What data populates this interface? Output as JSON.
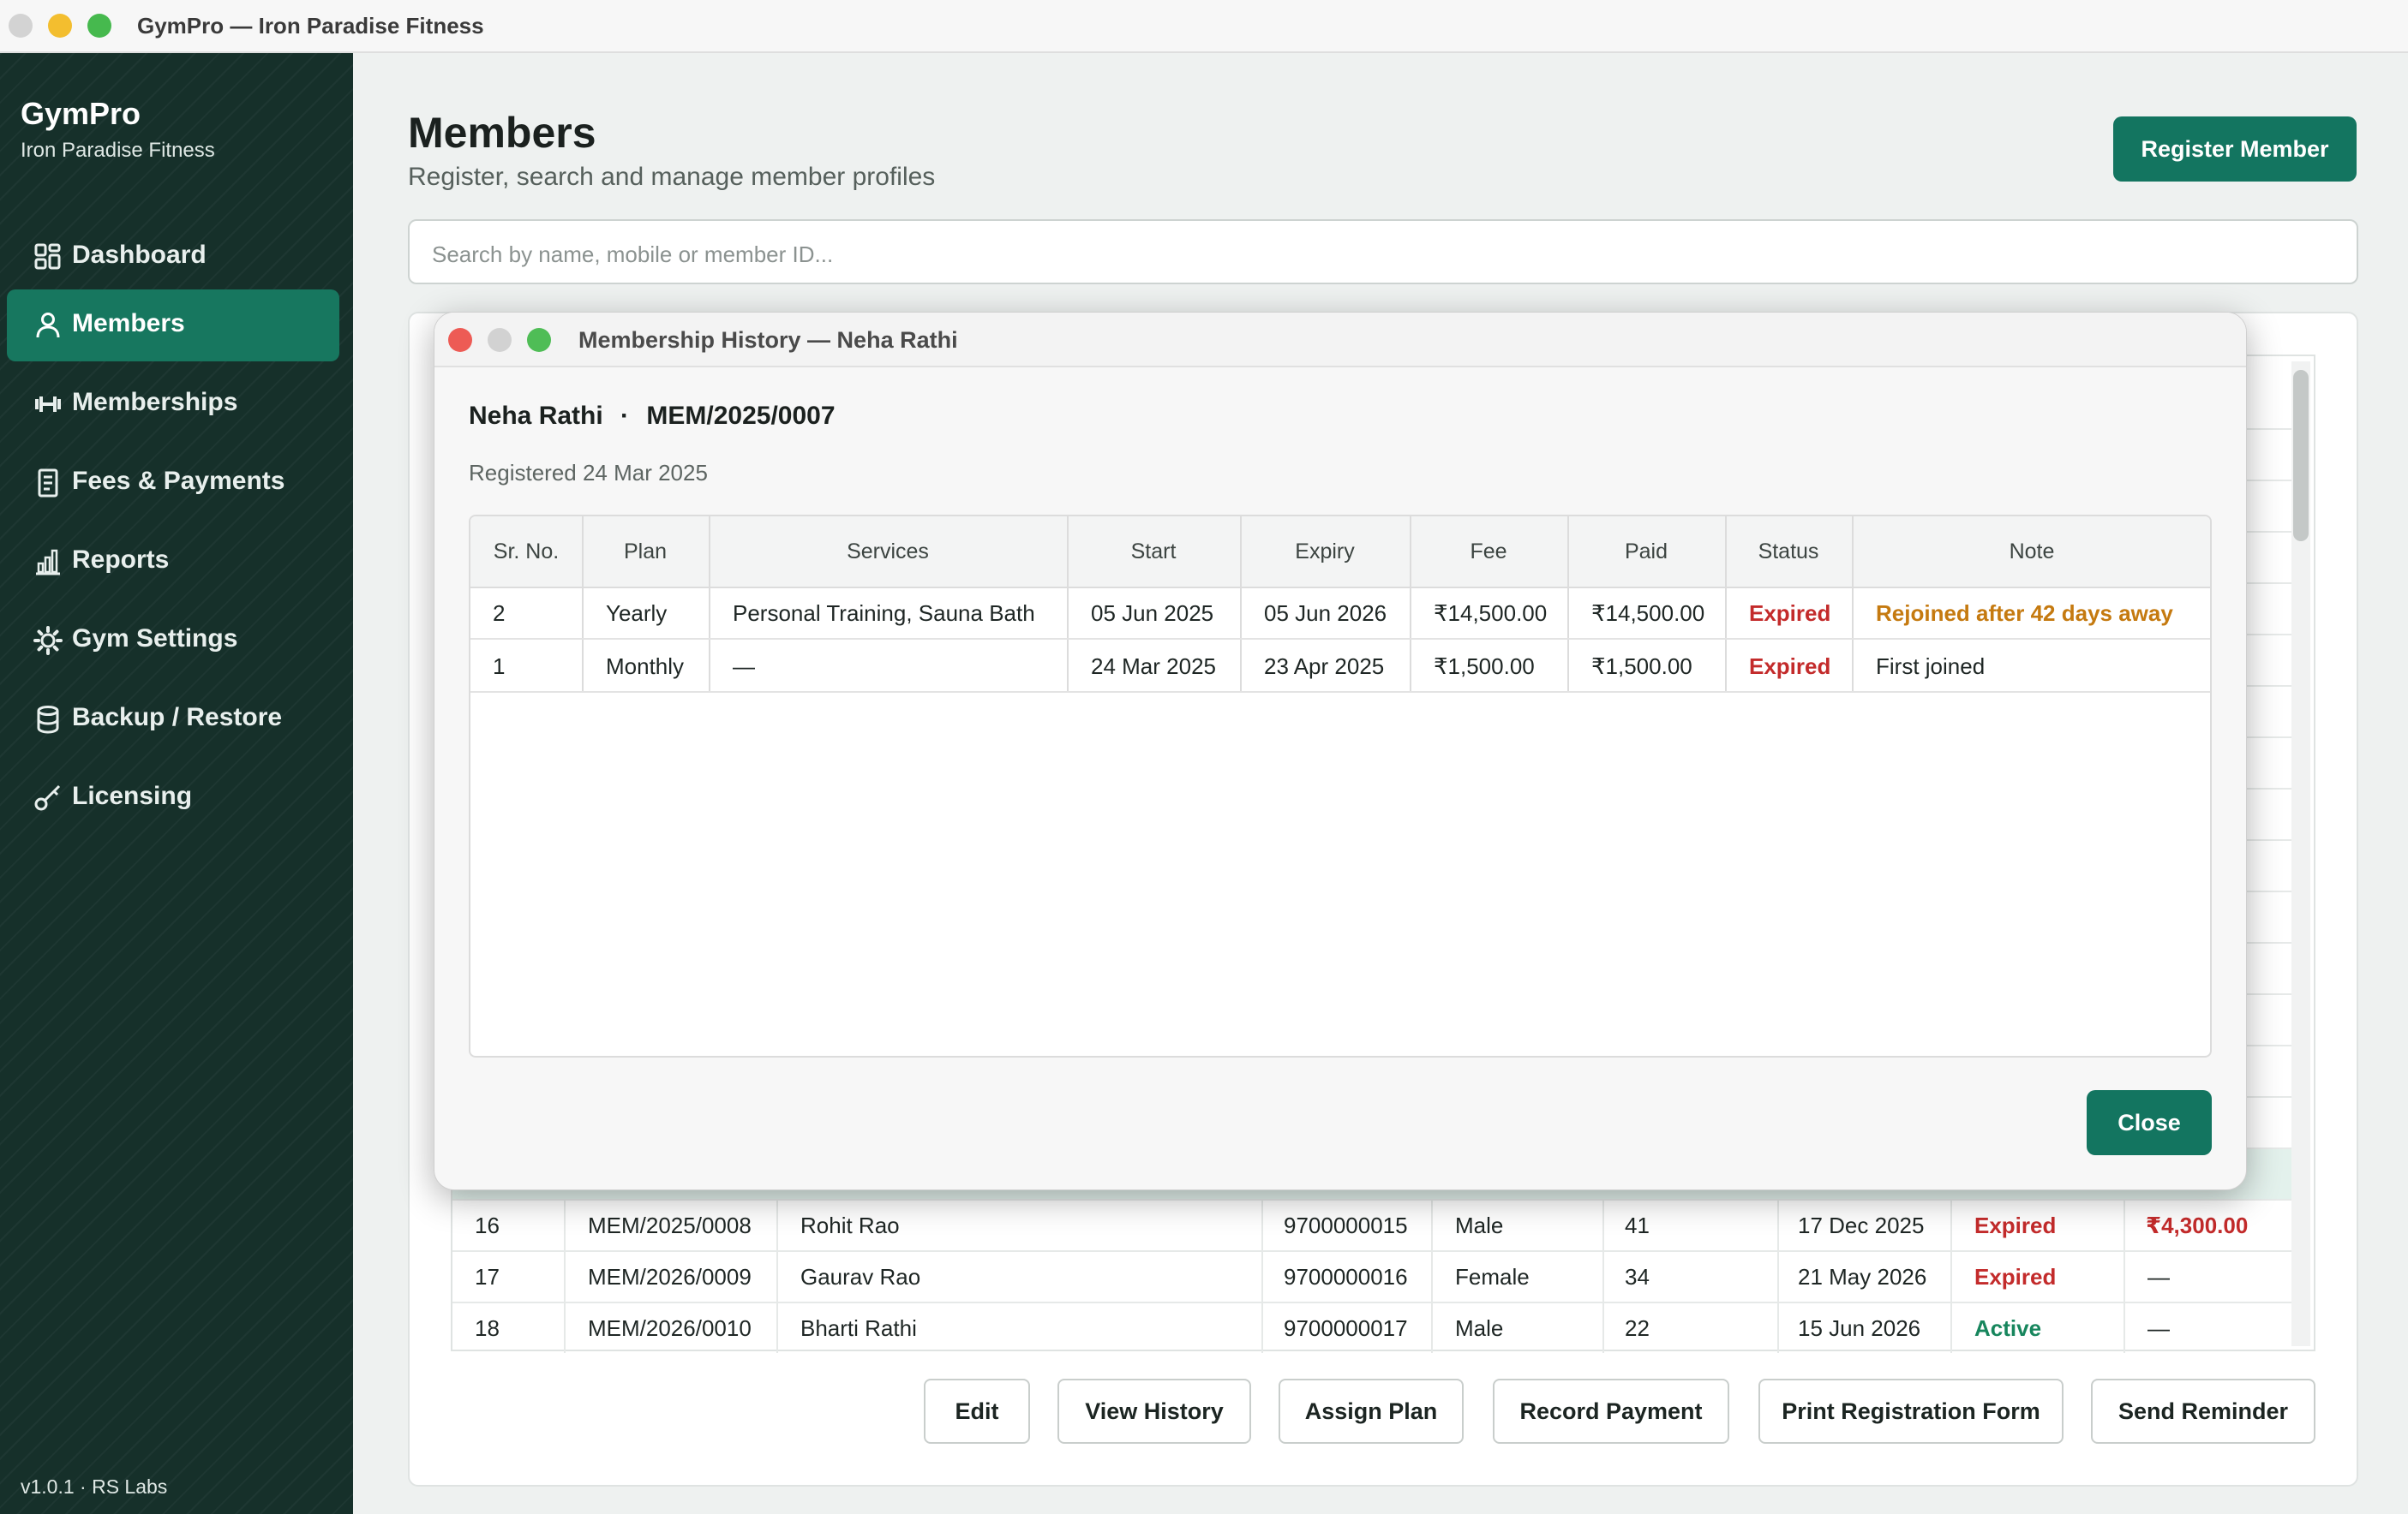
{
  "window": {
    "title": "GymPro — Iron Paradise Fitness"
  },
  "sidebar": {
    "brand": "GymPro",
    "subtitle": "Iron Paradise Fitness",
    "items": [
      {
        "label": "Dashboard",
        "icon": "dashboard-icon"
      },
      {
        "label": "Members",
        "icon": "person-icon",
        "active": true
      },
      {
        "label": "Memberships",
        "icon": "dumbbell-icon"
      },
      {
        "label": "Fees & Payments",
        "icon": "receipt-icon"
      },
      {
        "label": "Reports",
        "icon": "bar-chart-icon"
      },
      {
        "label": "Gym Settings",
        "icon": "gear-icon"
      },
      {
        "label": "Backup / Restore",
        "icon": "database-icon"
      },
      {
        "label": "Licensing",
        "icon": "key-icon"
      }
    ],
    "version": "v1.0.1 · RS Labs"
  },
  "main": {
    "title": "Members",
    "subtitle": "Register, search and manage member profiles",
    "register_button": "Register Member",
    "search_placeholder": "Search by name, mobile or member ID..."
  },
  "members_table": {
    "rows": [
      {
        "sr": "16",
        "id": "MEM/2025/0008",
        "name": "Rohit Rao",
        "mobile": "9700000015",
        "gender": "Male",
        "age": "41",
        "expiry": "17 Dec 2025",
        "status": "Expired",
        "due": "₹4,300.00"
      },
      {
        "sr": "17",
        "id": "MEM/2026/0009",
        "name": "Gaurav Rao",
        "mobile": "9700000016",
        "gender": "Female",
        "age": "34",
        "expiry": "21 May 2026",
        "status": "Expired",
        "due": "—"
      },
      {
        "sr": "18",
        "id": "MEM/2026/0010",
        "name": "Bharti Rathi",
        "mobile": "9700000017",
        "gender": "Male",
        "age": "22",
        "expiry": "15 Jun 2026",
        "status": "Active",
        "due": "—"
      }
    ]
  },
  "actions": {
    "edit": "Edit",
    "view_history": "View History",
    "assign_plan": "Assign Plan",
    "record_payment": "Record Payment",
    "print_form": "Print Registration Form",
    "send_reminder": "Send Reminder"
  },
  "dialog": {
    "title": "Membership History — Neha Rathi",
    "member_name": "Neha Rathi",
    "separator": "·",
    "member_id": "MEM/2025/0007",
    "registered": "Registered 24 Mar 2025",
    "columns": [
      "Sr. No.",
      "Plan",
      "Services",
      "Start",
      "Expiry",
      "Fee",
      "Paid",
      "Status",
      "Note"
    ],
    "rows": [
      {
        "sr": "2",
        "plan": "Yearly",
        "services": "Personal Training, Sauna Bath",
        "start": "05 Jun 2025",
        "expiry": "05 Jun 2026",
        "fee": "₹14,500.00",
        "paid": "₹14,500.00",
        "status": "Expired",
        "note": "Rejoined after 42 days away"
      },
      {
        "sr": "1",
        "plan": "Monthly",
        "services": "—",
        "start": "24 Mar 2025",
        "expiry": "23 Apr 2025",
        "fee": "₹1,500.00",
        "paid": "₹1,500.00",
        "status": "Expired",
        "note": "First joined"
      }
    ],
    "close_button": "Close"
  },
  "colors": {
    "sidebar_bg": "#16302a",
    "accent": "#137560",
    "expired": "#c32b2b",
    "active": "#17865d",
    "note_highlight": "#c57a10"
  }
}
